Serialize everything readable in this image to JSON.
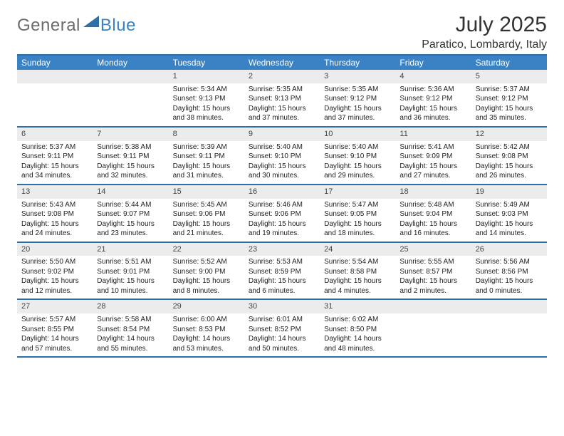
{
  "logo": {
    "text1": "General",
    "text2": "Blue",
    "color1": "#6b6b6b",
    "color2": "#3a82c4",
    "triangle_color": "#2f6fa8"
  },
  "title": "July 2025",
  "location": "Paratico, Lombardy, Italy",
  "colors": {
    "header_bg": "#3a82c4",
    "border": "#2f6fa8",
    "band": "#ececec"
  },
  "day_headers": [
    "Sunday",
    "Monday",
    "Tuesday",
    "Wednesday",
    "Thursday",
    "Friday",
    "Saturday"
  ],
  "weeks": [
    [
      {
        "blank": true
      },
      {
        "blank": true
      },
      {
        "n": "1",
        "sunrise": "5:34 AM",
        "sunset": "9:13 PM",
        "daylight": "15 hours and 38 minutes."
      },
      {
        "n": "2",
        "sunrise": "5:35 AM",
        "sunset": "9:13 PM",
        "daylight": "15 hours and 37 minutes."
      },
      {
        "n": "3",
        "sunrise": "5:35 AM",
        "sunset": "9:12 PM",
        "daylight": "15 hours and 37 minutes."
      },
      {
        "n": "4",
        "sunrise": "5:36 AM",
        "sunset": "9:12 PM",
        "daylight": "15 hours and 36 minutes."
      },
      {
        "n": "5",
        "sunrise": "5:37 AM",
        "sunset": "9:12 PM",
        "daylight": "15 hours and 35 minutes."
      }
    ],
    [
      {
        "n": "6",
        "sunrise": "5:37 AM",
        "sunset": "9:11 PM",
        "daylight": "15 hours and 34 minutes."
      },
      {
        "n": "7",
        "sunrise": "5:38 AM",
        "sunset": "9:11 PM",
        "daylight": "15 hours and 32 minutes."
      },
      {
        "n": "8",
        "sunrise": "5:39 AM",
        "sunset": "9:11 PM",
        "daylight": "15 hours and 31 minutes."
      },
      {
        "n": "9",
        "sunrise": "5:40 AM",
        "sunset": "9:10 PM",
        "daylight": "15 hours and 30 minutes."
      },
      {
        "n": "10",
        "sunrise": "5:40 AM",
        "sunset": "9:10 PM",
        "daylight": "15 hours and 29 minutes."
      },
      {
        "n": "11",
        "sunrise": "5:41 AM",
        "sunset": "9:09 PM",
        "daylight": "15 hours and 27 minutes."
      },
      {
        "n": "12",
        "sunrise": "5:42 AM",
        "sunset": "9:08 PM",
        "daylight": "15 hours and 26 minutes."
      }
    ],
    [
      {
        "n": "13",
        "sunrise": "5:43 AM",
        "sunset": "9:08 PM",
        "daylight": "15 hours and 24 minutes."
      },
      {
        "n": "14",
        "sunrise": "5:44 AM",
        "sunset": "9:07 PM",
        "daylight": "15 hours and 23 minutes."
      },
      {
        "n": "15",
        "sunrise": "5:45 AM",
        "sunset": "9:06 PM",
        "daylight": "15 hours and 21 minutes."
      },
      {
        "n": "16",
        "sunrise": "5:46 AM",
        "sunset": "9:06 PM",
        "daylight": "15 hours and 19 minutes."
      },
      {
        "n": "17",
        "sunrise": "5:47 AM",
        "sunset": "9:05 PM",
        "daylight": "15 hours and 18 minutes."
      },
      {
        "n": "18",
        "sunrise": "5:48 AM",
        "sunset": "9:04 PM",
        "daylight": "15 hours and 16 minutes."
      },
      {
        "n": "19",
        "sunrise": "5:49 AM",
        "sunset": "9:03 PM",
        "daylight": "15 hours and 14 minutes."
      }
    ],
    [
      {
        "n": "20",
        "sunrise": "5:50 AM",
        "sunset": "9:02 PM",
        "daylight": "15 hours and 12 minutes."
      },
      {
        "n": "21",
        "sunrise": "5:51 AM",
        "sunset": "9:01 PM",
        "daylight": "15 hours and 10 minutes."
      },
      {
        "n": "22",
        "sunrise": "5:52 AM",
        "sunset": "9:00 PM",
        "daylight": "15 hours and 8 minutes."
      },
      {
        "n": "23",
        "sunrise": "5:53 AM",
        "sunset": "8:59 PM",
        "daylight": "15 hours and 6 minutes."
      },
      {
        "n": "24",
        "sunrise": "5:54 AM",
        "sunset": "8:58 PM",
        "daylight": "15 hours and 4 minutes."
      },
      {
        "n": "25",
        "sunrise": "5:55 AM",
        "sunset": "8:57 PM",
        "daylight": "15 hours and 2 minutes."
      },
      {
        "n": "26",
        "sunrise": "5:56 AM",
        "sunset": "8:56 PM",
        "daylight": "15 hours and 0 minutes."
      }
    ],
    [
      {
        "n": "27",
        "sunrise": "5:57 AM",
        "sunset": "8:55 PM",
        "daylight": "14 hours and 57 minutes."
      },
      {
        "n": "28",
        "sunrise": "5:58 AM",
        "sunset": "8:54 PM",
        "daylight": "14 hours and 55 minutes."
      },
      {
        "n": "29",
        "sunrise": "6:00 AM",
        "sunset": "8:53 PM",
        "daylight": "14 hours and 53 minutes."
      },
      {
        "n": "30",
        "sunrise": "6:01 AM",
        "sunset": "8:52 PM",
        "daylight": "14 hours and 50 minutes."
      },
      {
        "n": "31",
        "sunrise": "6:02 AM",
        "sunset": "8:50 PM",
        "daylight": "14 hours and 48 minutes."
      },
      {
        "blank": true
      },
      {
        "blank": true
      }
    ]
  ],
  "labels": {
    "sunrise": "Sunrise: ",
    "sunset": "Sunset: ",
    "daylight": "Daylight: "
  }
}
